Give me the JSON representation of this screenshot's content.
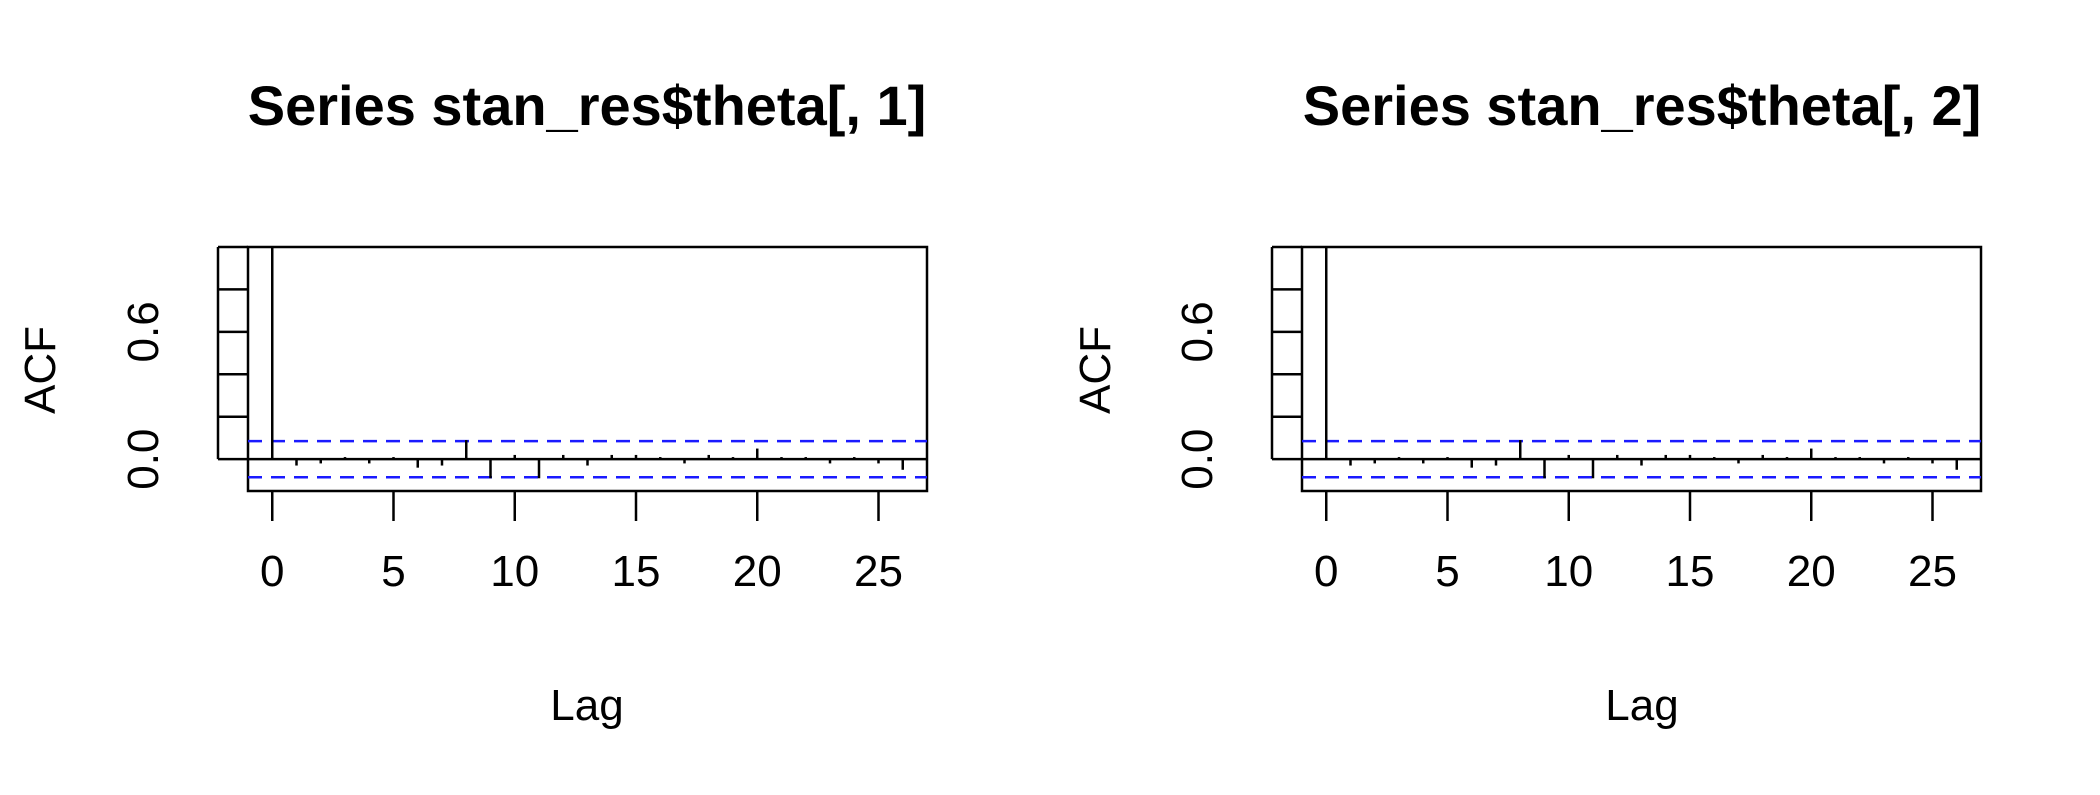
{
  "chart_data": [
    {
      "type": "bar",
      "title": "Series  stan_res$theta[, 1]",
      "xlabel": "Lag",
      "ylabel": "ACF",
      "xlim": [
        -1,
        27
      ],
      "ylim": [
        -0.15,
        1.0
      ],
      "x_ticks": [
        0,
        5,
        10,
        15,
        20,
        25
      ],
      "x_tick_labels": [
        "0",
        "5",
        "10",
        "15",
        "20",
        "25"
      ],
      "y_ticks": [
        0.0,
        0.2,
        0.4,
        0.6,
        0.8,
        1.0
      ],
      "y_tick_labels": [
        "0.0",
        "0.6"
      ],
      "lags": [
        0,
        1,
        2,
        3,
        4,
        5,
        6,
        7,
        8,
        9,
        10,
        11,
        12,
        13,
        14,
        15,
        16,
        17,
        18,
        19,
        20,
        21,
        22,
        23,
        24,
        25,
        26
      ],
      "acf": [
        1.0,
        -0.03,
        -0.02,
        0.01,
        -0.02,
        0.01,
        -0.04,
        -0.03,
        0.09,
        -0.09,
        0.02,
        -0.09,
        0.02,
        -0.03,
        0.02,
        0.02,
        0.01,
        -0.02,
        0.02,
        0.01,
        0.05,
        0.01,
        0.01,
        -0.02,
        0.01,
        -0.02,
        -0.05
      ],
      "ci": 0.085,
      "ci_color": "#1a1aff",
      "grid": false
    },
    {
      "type": "bar",
      "title": "Series  stan_res$theta[, 2]",
      "xlabel": "Lag",
      "ylabel": "ACF",
      "xlim": [
        -1,
        27
      ],
      "ylim": [
        -0.15,
        1.0
      ],
      "x_ticks": [
        0,
        5,
        10,
        15,
        20,
        25
      ],
      "x_tick_labels": [
        "0",
        "5",
        "10",
        "15",
        "20",
        "25"
      ],
      "y_ticks": [
        0.0,
        0.2,
        0.4,
        0.6,
        0.8,
        1.0
      ],
      "y_tick_labels": [
        "0.0",
        "0.6"
      ],
      "lags": [
        0,
        1,
        2,
        3,
        4,
        5,
        6,
        7,
        8,
        9,
        10,
        11,
        12,
        13,
        14,
        15,
        16,
        17,
        18,
        19,
        20,
        21,
        22,
        23,
        24,
        25,
        26
      ],
      "acf": [
        1.0,
        -0.03,
        -0.02,
        0.01,
        -0.02,
        0.01,
        -0.04,
        -0.03,
        0.09,
        -0.09,
        0.02,
        -0.09,
        0.02,
        -0.03,
        0.02,
        0.02,
        0.01,
        -0.02,
        0.02,
        0.01,
        0.05,
        0.01,
        0.01,
        -0.02,
        0.01,
        -0.02,
        -0.05
      ],
      "ci": 0.085,
      "ci_color": "#1a1aff",
      "grid": false
    }
  ]
}
